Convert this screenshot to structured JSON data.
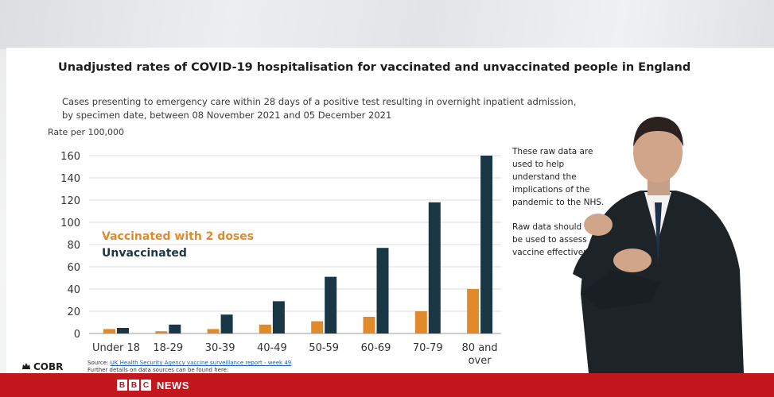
{
  "slide": {
    "title": "Unadjusted rates of COVID-19 hospitalisation for vaccinated and unvaccinated people in England",
    "subtitle": "Cases presenting to emergency care within 28 days of a positive test resulting in overnight inpatient admission, by specimen date, between 08 November 2021 and 05 December 2021",
    "side_note_1": "These raw data are used to help understand the implications of the pandemic to the NHS.",
    "side_note_2": "Raw data should not be used to assess vaccine effectiveness"
  },
  "chart_data": {
    "type": "bar",
    "ylabel": "Rate per 100,000",
    "xlabel": "",
    "ylim": [
      0,
      160
    ],
    "yticks": [
      0,
      20,
      40,
      60,
      80,
      100,
      120,
      140,
      160
    ],
    "categories": [
      "Under 18",
      "18-29",
      "30-39",
      "40-49",
      "50-59",
      "60-69",
      "70-79",
      "80 and over"
    ],
    "series": [
      {
        "name": "Vaccinated with 2 doses",
        "color": "#e08a2c",
        "values": [
          4,
          2,
          4,
          8,
          11,
          15,
          20,
          40
        ]
      },
      {
        "name": "Unvaccinated",
        "color": "#193745",
        "values": [
          5,
          8,
          17,
          29,
          51,
          77,
          118,
          160
        ]
      }
    ],
    "legend_position": "left-middle",
    "grid": true
  },
  "footer": {
    "cobr_label": "COBR",
    "source_prefix": "Source: ",
    "source_link": "UK Health Security Agency vaccine surveillance report - week 49",
    "further_details": "Further details on data sources can be found here:"
  },
  "broadcast": {
    "channel_letters": [
      "B",
      "B",
      "C"
    ],
    "channel_name": "NEWS",
    "bar_color": "#c2171d"
  }
}
